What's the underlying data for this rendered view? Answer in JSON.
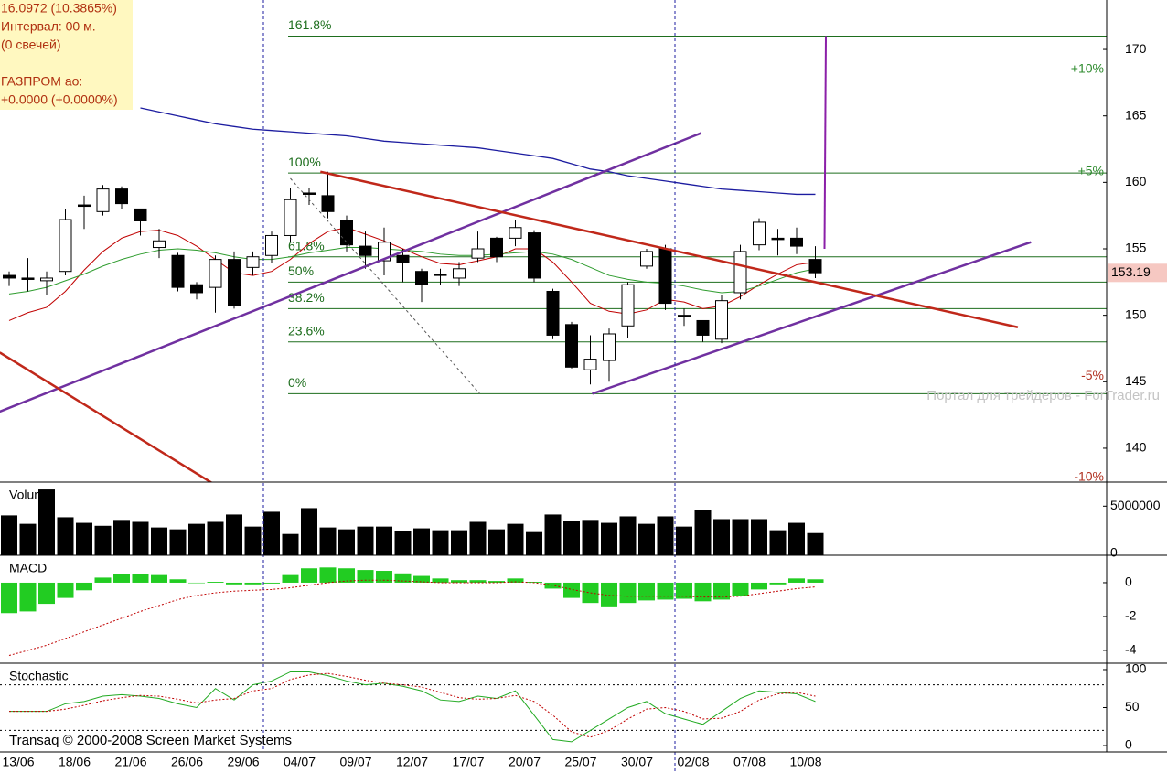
{
  "info": [
    "16.0972 (10.3865%)",
    "Интервал: 00 м.",
    "(0 свечей)",
    "ГАЗПРОМ ао:",
    "+0.0000 (+0.0000%)"
  ],
  "watermark": "Портал для трейдеров - ForTrader.ru",
  "footer": "Transaq © 2000-2008 Screen Market Systems",
  "chart_data": [
    {
      "type": "candlestick",
      "categories": [
        "13/06",
        null,
        null,
        "18/06",
        null,
        null,
        "21/06",
        null,
        null,
        "26/06",
        null,
        null,
        "29/06",
        null,
        null,
        "04/07",
        null,
        null,
        "09/07",
        null,
        null,
        "12/07",
        null,
        null,
        "17/07",
        null,
        null,
        "20/07",
        null,
        null,
        "25/07",
        null,
        null,
        "30/07",
        null,
        null,
        "02/08",
        null,
        null,
        "07/08",
        null,
        null,
        "10/08",
        null
      ],
      "open": [
        153,
        152.8,
        152.6,
        153.3,
        158.3,
        157.8,
        159.5,
        158,
        155.1,
        154.5,
        152.3,
        152.1,
        154.2,
        153.6,
        154.5,
        156,
        159.2,
        159,
        157.1,
        155.2,
        154.1,
        154.5,
        153.3,
        153.1,
        152.8,
        154.3,
        155.8,
        155.8,
        156.2,
        151.8,
        149.3,
        145.9,
        146.6,
        149.2,
        153.7,
        155,
        150,
        149.6,
        148.2,
        151.7,
        155.3,
        155.8,
        155.8,
        154.2
      ],
      "high": [
        153.3,
        154.3,
        153.3,
        158,
        159,
        159.8,
        159.7,
        158,
        156.5,
        154.7,
        152.5,
        154.5,
        154.8,
        154.8,
        156.3,
        159.6,
        159.6,
        160.8,
        157.5,
        156.3,
        156.6,
        155,
        153.5,
        153.5,
        154,
        156.3,
        155.9,
        157.2,
        156.4,
        152,
        149.5,
        148.5,
        149,
        152.5,
        155,
        155.3,
        150.5,
        149.6,
        151.5,
        155.3,
        157.3,
        156.5,
        156.6,
        155.2
      ],
      "low": [
        152.2,
        151.8,
        151.5,
        153,
        156.5,
        157.5,
        158,
        156,
        154.3,
        151.8,
        151.2,
        150.2,
        150.5,
        153,
        153.9,
        155.5,
        158.3,
        157.3,
        154.8,
        153.5,
        153,
        152.5,
        151,
        152.3,
        152.2,
        154,
        154,
        155.2,
        152.5,
        148.2,
        146,
        144.8,
        145,
        148.3,
        153.5,
        150.4,
        149.2,
        148,
        147.9,
        151.2,
        154.9,
        154.5,
        154.6,
        152.8
      ],
      "close": [
        152.8,
        152.7,
        152.8,
        157.2,
        158.2,
        159.5,
        158.4,
        157.1,
        155.6,
        152.1,
        151.7,
        154.2,
        150.7,
        154.4,
        156,
        158.7,
        159.1,
        157.8,
        155.3,
        154.5,
        155.5,
        154,
        152.3,
        153,
        153.5,
        155,
        154.4,
        156.6,
        152.8,
        148.5,
        146.1,
        146.7,
        148.6,
        152.3,
        154.8,
        150.9,
        149.9,
        148.5,
        151.1,
        154.8,
        157,
        155.7,
        155.2,
        153.2
      ],
      "up_color": "#ffffff",
      "down_color": "#000000",
      "overlays": [
        {
          "color": "#1c1ca0",
          "values": [
            null,
            null,
            null,
            null,
            null,
            null,
            null,
            165.6,
            165.3,
            165,
            164.7,
            164.4,
            164.2,
            164,
            163.9,
            163.8,
            163.7,
            163.6,
            163.5,
            163.3,
            163.1,
            163,
            162.9,
            162.8,
            162.7,
            162.6,
            162.4,
            162.2,
            162,
            161.8,
            161.4,
            161,
            160.8,
            160.5,
            160.3,
            160.1,
            159.9,
            159.7,
            159.5,
            159.4,
            159.3,
            159.2,
            159.1,
            159.1
          ]
        },
        {
          "color": "#c00000",
          "values": [
            149.6,
            150.2,
            150.6,
            151.8,
            153.4,
            154.8,
            155.8,
            156.3,
            156.4,
            156,
            155.2,
            154.2,
            153.2,
            153,
            153.3,
            154.2,
            155.4,
            156.3,
            156.6,
            156.1,
            155.6,
            155,
            154.4,
            153.9,
            153.8,
            154.1,
            154.4,
            155,
            155,
            154,
            152.5,
            150.9,
            150.3,
            150.1,
            150.4,
            151.2,
            151,
            150.5,
            150.7,
            151.4,
            152.3,
            153.1,
            153.8,
            154
          ]
        },
        {
          "color": "#2e9c2e",
          "values": [
            151.6,
            151.8,
            152.1,
            152.6,
            153.1,
            153.7,
            154.2,
            154.6,
            154.9,
            155,
            154.9,
            154.7,
            154.4,
            154.2,
            154.2,
            154.4,
            154.7,
            154.9,
            155.1,
            155.1,
            155,
            154.9,
            154.8,
            154.6,
            154.5,
            154.5,
            154.6,
            154.7,
            154.8,
            154.6,
            154.2,
            153.6,
            153,
            152.7,
            152.5,
            152.4,
            152.2,
            151.9,
            151.7,
            151.8,
            152.2,
            152.7,
            153.2,
            153.5
          ]
        }
      ],
      "trendlines": [
        {
          "color": "#7030a0",
          "points": [
            [
              -0.5,
              142.75
            ],
            [
              36.9,
              163.7
            ]
          ]
        },
        {
          "color": "#7030a0",
          "points": [
            [
              31.1,
              144.1
            ],
            [
              54.5,
              155.5
            ]
          ]
        },
        {
          "color": "#c0281a",
          "points": [
            [
              16.6,
              160.8
            ],
            [
              53.8,
              149.1
            ]
          ]
        },
        {
          "color": "#c0281a",
          "points": [
            [
              -0.5,
              147.2
            ],
            [
              10.8,
              137.4
            ]
          ]
        }
      ],
      "dashed_line": {
        "color": "#555555",
        "points": [
          [
            15,
            160.3
          ],
          [
            25.1,
            144.1
          ]
        ]
      },
      "fib_color": "#1e6e1e",
      "fib_levels": [
        {
          "label": "161.8%",
          "value": 171
        },
        {
          "label": "100%",
          "value": 160.7
        },
        {
          "label": "61.8%",
          "value": 154.4
        },
        {
          "label": "50%",
          "value": 152.5
        },
        {
          "label": "38.2%",
          "value": 150.5
        },
        {
          "label": "23.6%",
          "value": 148
        },
        {
          "label": "0%",
          "value": 144.1
        }
      ],
      "pct_labels": [
        {
          "text": "+10%",
          "price": 168.5,
          "color": "#2e8b2e"
        },
        {
          "text": "+5%",
          "price": 160.8,
          "color": "#2e8b2e"
        },
        {
          "text": "-5%",
          "price": 145.4,
          "color": "#b03020"
        },
        {
          "text": "-10%",
          "price": 137.8,
          "color": "#b03020"
        }
      ],
      "tick_line": {
        "color": "#8b1fa8",
        "from": 155,
        "to": 171
      },
      "last_price": 153.19,
      "ylim": [
        137.45,
        173.72
      ],
      "yticks": [
        140,
        145,
        150,
        155,
        160,
        165,
        170
      ]
    },
    {
      "type": "bar",
      "title": "Volume",
      "color": "#000000",
      "values": [
        4060000,
        3200000,
        6700000,
        3870000,
        3300000,
        3000000,
        3600000,
        3400000,
        2830000,
        2640000,
        3200000,
        3400000,
        4150000,
        2920000,
        4430000,
        2170000,
        4800000,
        2830000,
        2640000,
        2920000,
        2920000,
        2450000,
        2740000,
        2550000,
        2550000,
        3400000,
        2640000,
        3200000,
        2360000,
        4150000,
        3500000,
        3600000,
        3300000,
        3960000,
        3200000,
        3960000,
        2920000,
        4620000,
        3680000,
        3680000,
        3680000,
        2550000,
        3300000,
        2260000
      ],
      "ylim": [
        0,
        7450000
      ],
      "yticks": [
        0,
        5000000
      ]
    },
    {
      "type": "macd",
      "title": "MACD",
      "color": "#22cc22",
      "signal_color": "#c00000",
      "values": [
        -1.8,
        -1.7,
        -1.25,
        -0.9,
        -0.45,
        0.3,
        0.5,
        0.5,
        0.45,
        0.2,
        0,
        0.05,
        -0.1,
        -0.1,
        -0.05,
        0.45,
        0.85,
        0.9,
        0.85,
        0.75,
        0.7,
        0.55,
        0.4,
        0.25,
        0.15,
        0.15,
        0.1,
        0.25,
        0.05,
        -0.35,
        -0.9,
        -1.2,
        -1.4,
        -1.2,
        -1.05,
        -1,
        -0.95,
        -1.1,
        -1,
        -0.8,
        -0.4,
        -0.1,
        0.25,
        0.2
      ],
      "signal": [
        -4.3,
        -4,
        -3.7,
        -3.3,
        -2.9,
        -2.5,
        -2.1,
        -1.7,
        -1.35,
        -1,
        -0.75,
        -0.6,
        -0.5,
        -0.45,
        -0.4,
        -0.3,
        -0.15,
        0,
        0.1,
        0.15,
        0.15,
        0.1,
        0.05,
        0,
        0,
        0,
        0,
        0.05,
        0,
        -0.15,
        -0.4,
        -0.6,
        -0.75,
        -0.8,
        -0.8,
        -0.8,
        -0.8,
        -0.85,
        -0.85,
        -0.8,
        -0.65,
        -0.5,
        -0.35,
        -0.25
      ],
      "ylim": [
        -4.76,
        1.62
      ],
      "yticks": [
        0,
        -2,
        -4
      ]
    },
    {
      "type": "line",
      "title": "Stochastic",
      "series": [
        {
          "color": "#22aa22",
          "dashed": false,
          "values": [
            45,
            45,
            45,
            55,
            58,
            65,
            67,
            65,
            62,
            55,
            50,
            75,
            60,
            80,
            85,
            97,
            97,
            92,
            85,
            80,
            82,
            78,
            72,
            60,
            58,
            65,
            62,
            72,
            40,
            8,
            5,
            20,
            35,
            50,
            58,
            42,
            35,
            28,
            45,
            62,
            72,
            70,
            68,
            58
          ]
        },
        {
          "color": "#c00000",
          "dashed": true,
          "values": [
            45,
            45,
            45,
            48,
            53,
            59,
            63,
            66,
            65,
            61,
            56,
            60,
            62,
            72,
            75,
            87,
            93,
            95,
            91,
            86,
            82,
            80,
            77,
            70,
            63,
            61,
            62,
            66,
            58,
            40,
            18,
            11,
            20,
            35,
            48,
            50,
            45,
            35,
            36,
            45,
            60,
            68,
            70,
            65
          ]
        }
      ],
      "levels": [
        80,
        20
      ],
      "ylim": [
        -8.4,
        108.4
      ],
      "yticks": [
        100,
        50,
        0
      ]
    }
  ]
}
